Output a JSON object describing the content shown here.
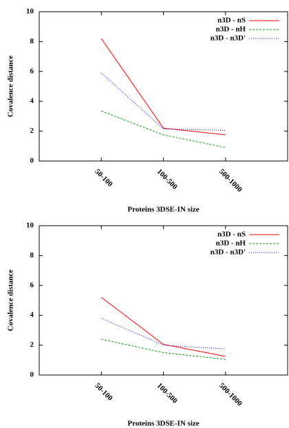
{
  "chart_data": [
    {
      "type": "line",
      "categories": [
        "50-100",
        "100-500",
        "500-1000"
      ],
      "xlabel": "Proteins 3DSE-IN size",
      "ylabel": "Covalence distance",
      "ylim": [
        0,
        10
      ],
      "yticks": [
        0,
        2,
        4,
        6,
        8,
        10
      ],
      "legend": "upper right",
      "series": [
        {
          "name": "n3D - nS",
          "color": "#ff0000",
          "dash": "solid",
          "values": [
            8.2,
            2.2,
            1.75
          ]
        },
        {
          "name": "n3D - nH",
          "color": "#00a000",
          "dash": "dashed",
          "values": [
            3.35,
            1.75,
            0.9
          ]
        },
        {
          "name": "n3D - n3D'",
          "color": "#0000ff",
          "dash": "dotted",
          "values": [
            5.9,
            2.15,
            2.05
          ]
        }
      ]
    },
    {
      "type": "line",
      "categories": [
        "50-100",
        "100-500",
        "500-1000"
      ],
      "xlabel": "Proteins 3DSE-IN size",
      "ylabel": "Covalence distance",
      "ylim": [
        0,
        10
      ],
      "yticks": [
        0,
        2,
        4,
        6,
        8,
        10
      ],
      "legend": "upper right",
      "series": [
        {
          "name": "n3D - nS",
          "color": "#ff0000",
          "dash": "solid",
          "values": [
            5.2,
            2.05,
            1.25
          ]
        },
        {
          "name": "n3D - nH",
          "color": "#00a000",
          "dash": "dashed",
          "values": [
            2.4,
            1.5,
            1.05
          ]
        },
        {
          "name": "n3D - n3D'",
          "color": "#0000ff",
          "dash": "dotted",
          "values": [
            3.8,
            2.0,
            1.75
          ]
        }
      ]
    }
  ]
}
